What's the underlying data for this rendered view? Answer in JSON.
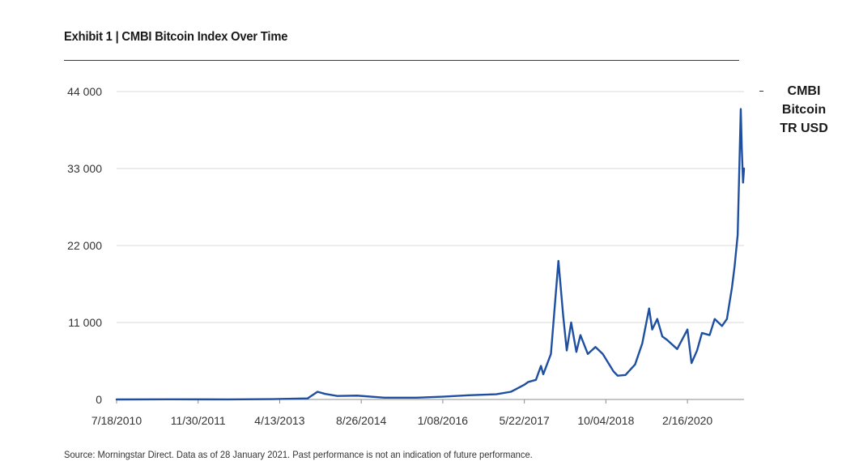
{
  "title": "Exhibit 1 | CMBI Bitcoin Index Over Time",
  "legend": {
    "label": "CMBI Bitcoin TR USD",
    "marker": "-"
  },
  "source": "Source: Morningstar Direct. Data as of 28 January 2021. Past performance is not an indication of future performance.",
  "colors": {
    "series": "#1f4fa0",
    "grid": "#d9d9d9",
    "axis": "#8c8c8c",
    "text": "#333333"
  },
  "chart_data": {
    "type": "line",
    "title": "Exhibit 1 | CMBI Bitcoin Index Over Time",
    "xlabel": "",
    "ylabel": "",
    "ylim": [
      0,
      44000
    ],
    "yticks": [
      0,
      11000,
      22000,
      33000,
      44000
    ],
    "ytick_labels": [
      "0",
      "11 000",
      "22 000",
      "33 000",
      "44 000"
    ],
    "xlim": [
      "2010-07-18",
      "2021-01-28"
    ],
    "xticks": [
      "2010-07-18",
      "2011-11-30",
      "2013-04-13",
      "2014-08-26",
      "2016-01-08",
      "2017-05-22",
      "2018-10-04",
      "2020-02-16"
    ],
    "xtick_labels": [
      "7/18/2010",
      "11/30/2011",
      "4/13/2013",
      "8/26/2014",
      "1/08/2016",
      "5/22/2017",
      "10/04/2018",
      "2/16/2020"
    ],
    "grid": "horizontal",
    "legend_position": "right",
    "series": [
      {
        "name": "CMBI Bitcoin TR USD",
        "x": [
          "2010-07-18",
          "2011-06-01",
          "2012-06-01",
          "2013-03-01",
          "2013-06-01",
          "2013-10-01",
          "2013-12-01",
          "2014-01-15",
          "2014-04-01",
          "2014-08-01",
          "2015-01-15",
          "2015-08-01",
          "2016-01-08",
          "2016-06-15",
          "2016-12-01",
          "2017-03-01",
          "2017-05-22",
          "2017-06-15",
          "2017-08-01",
          "2017-09-01",
          "2017-09-15",
          "2017-11-01",
          "2017-12-17",
          "2018-01-15",
          "2018-02-06",
          "2018-03-05",
          "2018-04-06",
          "2018-05-01",
          "2018-06-15",
          "2018-08-01",
          "2018-09-15",
          "2018-11-20",
          "2018-12-15",
          "2019-02-01",
          "2019-04-01",
          "2019-05-15",
          "2019-06-26",
          "2019-07-15",
          "2019-08-15",
          "2019-09-15",
          "2019-10-15",
          "2019-12-15",
          "2020-02-16",
          "2020-03-12",
          "2020-04-15",
          "2020-05-15",
          "2020-07-01",
          "2020-08-01",
          "2020-09-15",
          "2020-10-15",
          "2020-11-15",
          "2020-12-01",
          "2020-12-20",
          "2021-01-08",
          "2021-01-14",
          "2021-01-22",
          "2021-01-28"
        ],
        "values": [
          0,
          20,
          10,
          50,
          100,
          150,
          1100,
          800,
          500,
          550,
          250,
          250,
          400,
          600,
          750,
          1100,
          2100,
          2500,
          2800,
          4800,
          3600,
          6500,
          19800,
          12000,
          7000,
          11000,
          6800,
          9200,
          6500,
          7500,
          6500,
          4000,
          3400,
          3500,
          5000,
          8000,
          13000,
          10000,
          11500,
          9000,
          8500,
          7200,
          10000,
          5200,
          7000,
          9500,
          9200,
          11500,
          10500,
          11500,
          16000,
          19000,
          23500,
          41500,
          36000,
          31000,
          33000
        ]
      }
    ]
  }
}
